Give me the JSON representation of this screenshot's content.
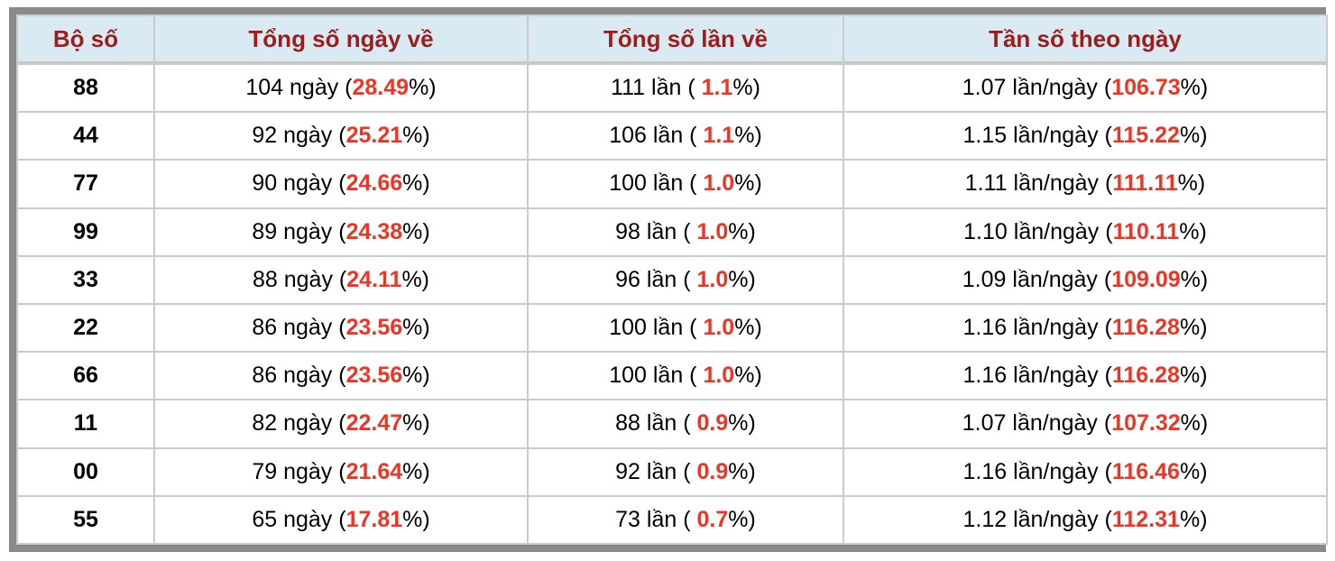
{
  "table": {
    "headers": [
      "Bộ số",
      "Tổng số ngày về",
      "Tổng số lần về",
      "Tần số theo ngày"
    ],
    "rows": [
      {
        "pair": "88",
        "days": {
          "pre": "104 ngày (",
          "hl": "28.49",
          "post": "%)"
        },
        "times": {
          "pre": "111 lần ( ",
          "hl": "1.1",
          "post": "%)"
        },
        "freq": {
          "pre": "1.07 lần/ngày (",
          "hl": "106.73",
          "post": "%)"
        }
      },
      {
        "pair": "44",
        "days": {
          "pre": "92 ngày (",
          "hl": "25.21",
          "post": "%)"
        },
        "times": {
          "pre": "106 lần ( ",
          "hl": "1.1",
          "post": "%)"
        },
        "freq": {
          "pre": "1.15 lần/ngày (",
          "hl": "115.22",
          "post": "%)"
        }
      },
      {
        "pair": "77",
        "days": {
          "pre": "90 ngày (",
          "hl": "24.66",
          "post": "%)"
        },
        "times": {
          "pre": "100 lần ( ",
          "hl": "1.0",
          "post": "%)"
        },
        "freq": {
          "pre": "1.11 lần/ngày (",
          "hl": "111.11",
          "post": "%)"
        }
      },
      {
        "pair": "99",
        "days": {
          "pre": "89 ngày (",
          "hl": "24.38",
          "post": "%)"
        },
        "times": {
          "pre": "98 lần ( ",
          "hl": "1.0",
          "post": "%)"
        },
        "freq": {
          "pre": "1.10 lần/ngày (",
          "hl": "110.11",
          "post": "%)"
        }
      },
      {
        "pair": "33",
        "days": {
          "pre": "88 ngày (",
          "hl": "24.11",
          "post": "%)"
        },
        "times": {
          "pre": "96 lần ( ",
          "hl": "1.0",
          "post": "%)"
        },
        "freq": {
          "pre": "1.09 lần/ngày (",
          "hl": "109.09",
          "post": "%)"
        }
      },
      {
        "pair": "22",
        "days": {
          "pre": "86 ngày (",
          "hl": "23.56",
          "post": "%)"
        },
        "times": {
          "pre": "100 lần ( ",
          "hl": "1.0",
          "post": "%)"
        },
        "freq": {
          "pre": "1.16 lần/ngày (",
          "hl": "116.28",
          "post": "%)"
        }
      },
      {
        "pair": "66",
        "days": {
          "pre": "86 ngày (",
          "hl": "23.56",
          "post": "%)"
        },
        "times": {
          "pre": "100 lần ( ",
          "hl": "1.0",
          "post": "%)"
        },
        "freq": {
          "pre": "1.16 lần/ngày (",
          "hl": "116.28",
          "post": "%)"
        }
      },
      {
        "pair": "11",
        "days": {
          "pre": "82 ngày (",
          "hl": "22.47",
          "post": "%)"
        },
        "times": {
          "pre": "88 lần ( ",
          "hl": "0.9",
          "post": "%)"
        },
        "freq": {
          "pre": "1.07 lần/ngày (",
          "hl": "107.32",
          "post": "%)"
        }
      },
      {
        "pair": "00",
        "days": {
          "pre": "79 ngày (",
          "hl": "21.64",
          "post": "%)"
        },
        "times": {
          "pre": "92 lần ( ",
          "hl": "0.9",
          "post": "%)"
        },
        "freq": {
          "pre": "1.16 lần/ngày (",
          "hl": "116.46",
          "post": "%)"
        }
      },
      {
        "pair": "55",
        "days": {
          "pre": "65 ngày (",
          "hl": "17.81",
          "post": "%)"
        },
        "times": {
          "pre": "73 lần ( ",
          "hl": "0.7",
          "post": "%)"
        },
        "freq": {
          "pre": "1.12 lần/ngày (",
          "hl": "112.31",
          "post": "%)"
        }
      }
    ]
  },
  "colors": {
    "header_bg": "#d9eaf2",
    "header_text": "#9e1c1c",
    "highlight_red": "#ee3524",
    "frame_gray": "#8a8a8a",
    "grid_gray": "#cbcbcb"
  }
}
